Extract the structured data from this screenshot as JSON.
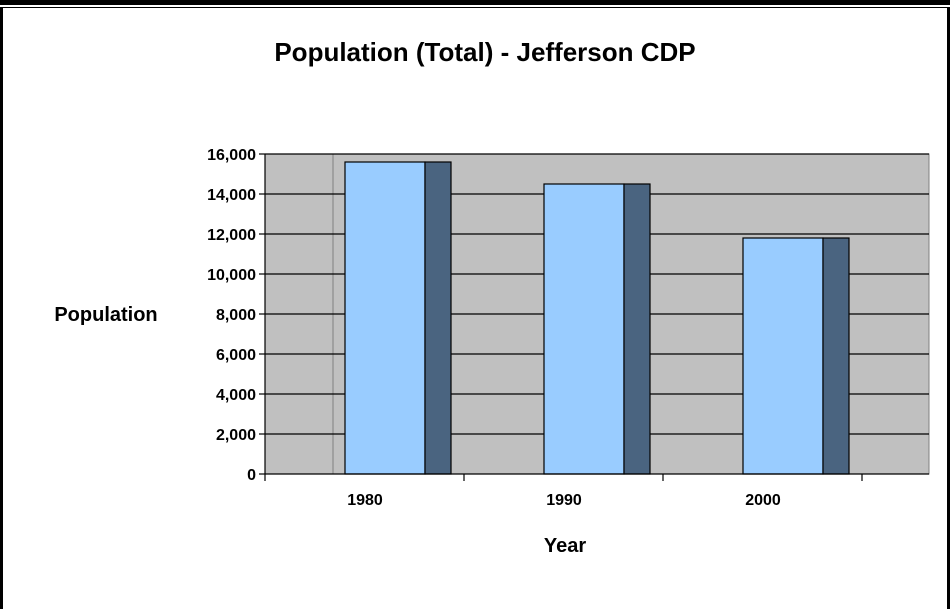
{
  "chart_data": {
    "type": "bar",
    "title": "Population (Total) - Jefferson CDP",
    "xlabel": "Year",
    "ylabel": "Population",
    "categories": [
      "1980",
      "1990",
      "2000"
    ],
    "values": [
      15600,
      14500,
      11800
    ],
    "ylim": [
      0,
      16000
    ],
    "yticks": [
      "0",
      "2,000",
      "4,000",
      "6,000",
      "8,000",
      "10,000",
      "12,000",
      "14,000",
      "16,000"
    ],
    "ytick_values": [
      0,
      2000,
      4000,
      6000,
      8000,
      10000,
      12000,
      14000,
      16000
    ],
    "grid": true,
    "legend": "none",
    "colors": {
      "plot_background": "#c0c0c0",
      "bar_front": "#99ccff",
      "bar_side": "#4a6480",
      "gridline": "#000000"
    }
  }
}
